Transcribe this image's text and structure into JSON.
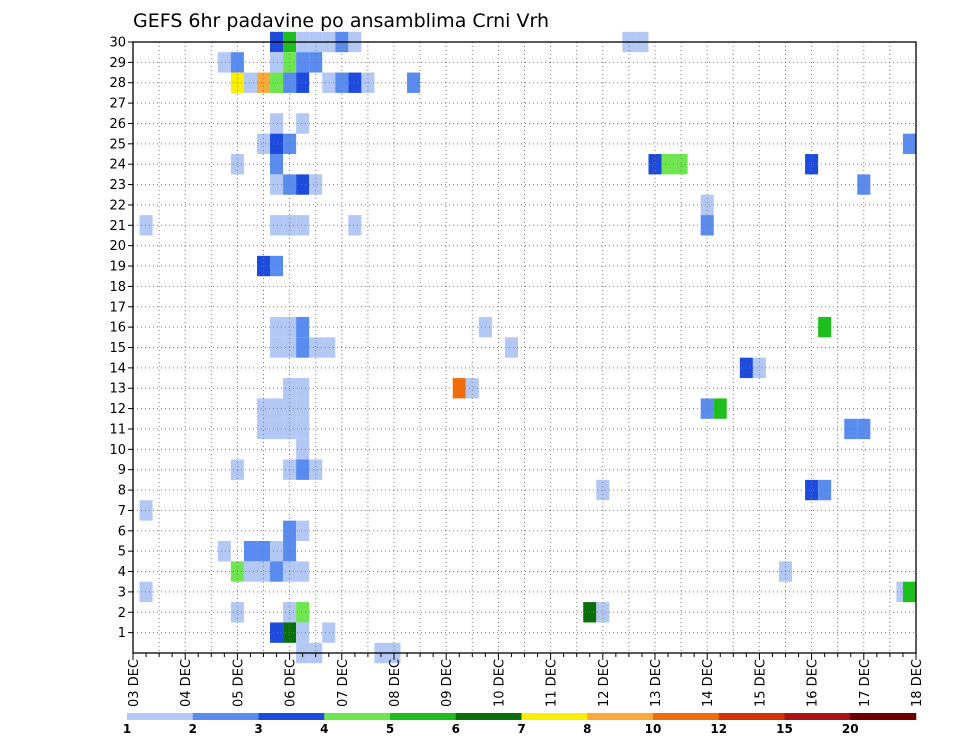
{
  "chart_data": {
    "type": "heatmap",
    "title": "GEFS 6hr padavine po ansamblima Crni Vrh",
    "xlabel": "",
    "ylabel": "",
    "x_ticks": [
      "03 DEC",
      "04 DEC",
      "05 DEC",
      "06 DEC",
      "07 DEC",
      "08 DEC",
      "09 DEC",
      "10 DEC",
      "11 DEC",
      "12 DEC",
      "13 DEC",
      "14 DEC",
      "15 DEC",
      "16 DEC",
      "17 DEC",
      "18 DEC"
    ],
    "y_ticks": [
      1,
      2,
      3,
      4,
      5,
      6,
      7,
      8,
      9,
      10,
      11,
      12,
      13,
      14,
      15,
      16,
      17,
      18,
      19,
      20,
      21,
      22,
      23,
      24,
      25,
      26,
      27,
      28,
      29,
      30
    ],
    "xlim_days": [
      0,
      15
    ],
    "ylim_members": [
      0,
      30
    ],
    "grid": true,
    "colorbar": {
      "labels": [
        "1",
        "2",
        "3",
        "4",
        "5",
        "6",
        "7",
        "8",
        "10",
        "12",
        "15",
        "20"
      ],
      "colors": [
        "#b4c8f5",
        "#5a8cf0",
        "#1e4bdc",
        "#6ee650",
        "#1ebe1e",
        "#0a6e0a",
        "#faf000",
        "#faaa3c",
        "#f06e0a",
        "#d2320a",
        "#aa1414",
        "#6e0000"
      ]
    },
    "cells": [
      {
        "d": 0.25,
        "m": 21,
        "l": 1
      },
      {
        "d": 0.25,
        "m": 7,
        "l": 1
      },
      {
        "d": 0.25,
        "m": 3,
        "l": 1
      },
      {
        "d": 1.75,
        "m": 29,
        "l": 1
      },
      {
        "d": 1.75,
        "m": 5,
        "l": 1
      },
      {
        "d": 2.0,
        "m": 29,
        "l": 2
      },
      {
        "d": 2.0,
        "m": 28,
        "l": 7
      },
      {
        "d": 2.0,
        "m": 24,
        "l": 1
      },
      {
        "d": 2.0,
        "m": 9,
        "l": 1
      },
      {
        "d": 2.0,
        "m": 4,
        "l": 4
      },
      {
        "d": 2.0,
        "m": 2,
        "l": 1
      },
      {
        "d": 2.25,
        "m": 28,
        "l": 1
      },
      {
        "d": 2.25,
        "m": 5,
        "l": 2
      },
      {
        "d": 2.25,
        "m": 4,
        "l": 1
      },
      {
        "d": 2.5,
        "m": 28,
        "l": 8
      },
      {
        "d": 2.5,
        "m": 25,
        "l": 1
      },
      {
        "d": 2.5,
        "m": 19,
        "l": 3
      },
      {
        "d": 2.5,
        "m": 12,
        "l": 1
      },
      {
        "d": 2.5,
        "m": 11,
        "l": 1
      },
      {
        "d": 2.5,
        "m": 5,
        "l": 2
      },
      {
        "d": 2.5,
        "m": 4,
        "l": 1
      },
      {
        "d": 2.75,
        "m": 30,
        "l": 3
      },
      {
        "d": 2.75,
        "m": 29,
        "l": 1
      },
      {
        "d": 2.75,
        "m": 28,
        "l": 4
      },
      {
        "d": 2.75,
        "m": 26,
        "l": 1
      },
      {
        "d": 2.75,
        "m": 25,
        "l": 3
      },
      {
        "d": 2.75,
        "m": 24,
        "l": 2
      },
      {
        "d": 2.75,
        "m": 23,
        "l": 1
      },
      {
        "d": 2.75,
        "m": 21,
        "l": 1
      },
      {
        "d": 2.75,
        "m": 19,
        "l": 2
      },
      {
        "d": 2.75,
        "m": 16,
        "l": 1
      },
      {
        "d": 2.75,
        "m": 15,
        "l": 1
      },
      {
        "d": 2.75,
        "m": 12,
        "l": 1
      },
      {
        "d": 2.75,
        "m": 11,
        "l": 1
      },
      {
        "d": 2.75,
        "m": 5,
        "l": 1
      },
      {
        "d": 2.75,
        "m": 4,
        "l": 2
      },
      {
        "d": 2.75,
        "m": 1,
        "l": 3
      },
      {
        "d": 3.0,
        "m": 30,
        "l": 5
      },
      {
        "d": 3.0,
        "m": 29,
        "l": 4
      },
      {
        "d": 3.0,
        "m": 28,
        "l": 2
      },
      {
        "d": 3.0,
        "m": 25,
        "l": 2
      },
      {
        "d": 3.0,
        "m": 23,
        "l": 2
      },
      {
        "d": 3.0,
        "m": 21,
        "l": 1
      },
      {
        "d": 3.0,
        "m": 16,
        "l": 1
      },
      {
        "d": 3.0,
        "m": 15,
        "l": 1
      },
      {
        "d": 3.0,
        "m": 13,
        "l": 1
      },
      {
        "d": 3.0,
        "m": 12,
        "l": 1
      },
      {
        "d": 3.0,
        "m": 11,
        "l": 1
      },
      {
        "d": 3.0,
        "m": 9,
        "l": 1
      },
      {
        "d": 3.0,
        "m": 6,
        "l": 2
      },
      {
        "d": 3.0,
        "m": 5,
        "l": 2
      },
      {
        "d": 3.0,
        "m": 4,
        "l": 1
      },
      {
        "d": 3.0,
        "m": 2,
        "l": 1
      },
      {
        "d": 3.0,
        "m": 1,
        "l": 6
      },
      {
        "d": 3.25,
        "m": 30,
        "l": 1
      },
      {
        "d": 3.25,
        "m": 29,
        "l": 2
      },
      {
        "d": 3.25,
        "m": 28,
        "l": 3
      },
      {
        "d": 3.25,
        "m": 26,
        "l": 1
      },
      {
        "d": 3.25,
        "m": 23,
        "l": 3
      },
      {
        "d": 3.25,
        "m": 21,
        "l": 1
      },
      {
        "d": 3.25,
        "m": 16,
        "l": 2
      },
      {
        "d": 3.25,
        "m": 15,
        "l": 2
      },
      {
        "d": 3.25,
        "m": 13,
        "l": 1
      },
      {
        "d": 3.25,
        "m": 12,
        "l": 1
      },
      {
        "d": 3.25,
        "m": 11,
        "l": 1
      },
      {
        "d": 3.25,
        "m": 10,
        "l": 1
      },
      {
        "d": 3.25,
        "m": 9,
        "l": 2
      },
      {
        "d": 3.25,
        "m": 6,
        "l": 1
      },
      {
        "d": 3.25,
        "m": 4,
        "l": 1
      },
      {
        "d": 3.25,
        "m": 2,
        "l": 4
      },
      {
        "d": 3.25,
        "m": 1,
        "l": 1
      },
      {
        "d": 3.25,
        "m": 0,
        "l": 1
      },
      {
        "d": 3.5,
        "m": 30,
        "l": 1
      },
      {
        "d": 3.5,
        "m": 29,
        "l": 2
      },
      {
        "d": 3.5,
        "m": 23,
        "l": 1
      },
      {
        "d": 3.5,
        "m": 15,
        "l": 1
      },
      {
        "d": 3.5,
        "m": 9,
        "l": 1
      },
      {
        "d": 3.5,
        "m": 0,
        "l": 1
      },
      {
        "d": 3.75,
        "m": 30,
        "l": 1
      },
      {
        "d": 3.75,
        "m": 28,
        "l": 1
      },
      {
        "d": 3.75,
        "m": 15,
        "l": 1
      },
      {
        "d": 3.75,
        "m": 1,
        "l": 1
      },
      {
        "d": 4.0,
        "m": 30,
        "l": 2
      },
      {
        "d": 4.0,
        "m": 28,
        "l": 2
      },
      {
        "d": 4.25,
        "m": 30,
        "l": 1
      },
      {
        "d": 4.25,
        "m": 28,
        "l": 3
      },
      {
        "d": 4.25,
        "m": 21,
        "l": 1
      },
      {
        "d": 4.5,
        "m": 28,
        "l": 1
      },
      {
        "d": 4.75,
        "m": 0,
        "l": 1
      },
      {
        "d": 5.0,
        "m": 0,
        "l": 1
      },
      {
        "d": 5.375,
        "m": 28,
        "l": 2
      },
      {
        "d": 6.25,
        "m": 13,
        "l": 9
      },
      {
        "d": 6.5,
        "m": 13,
        "l": 1
      },
      {
        "d": 6.75,
        "m": 16,
        "l": 1
      },
      {
        "d": 7.25,
        "m": 15,
        "l": 1
      },
      {
        "d": 8.75,
        "m": 2,
        "l": 6
      },
      {
        "d": 9.0,
        "m": 8,
        "l": 1
      },
      {
        "d": 9.0,
        "m": 2,
        "l": 1
      },
      {
        "d": 9.5,
        "m": 30,
        "l": 1
      },
      {
        "d": 9.75,
        "m": 30,
        "l": 1
      },
      {
        "d": 10.0,
        "m": 24,
        "l": 3
      },
      {
        "d": 10.25,
        "m": 24,
        "l": 4
      },
      {
        "d": 10.5,
        "m": 24,
        "l": 4
      },
      {
        "d": 11.0,
        "m": 22,
        "l": 1
      },
      {
        "d": 11.0,
        "m": 21,
        "l": 2
      },
      {
        "d": 11.0,
        "m": 12,
        "l": 2
      },
      {
        "d": 11.25,
        "m": 12,
        "l": 5
      },
      {
        "d": 11.75,
        "m": 14,
        "l": 3
      },
      {
        "d": 12.0,
        "m": 14,
        "l": 1
      },
      {
        "d": 12.5,
        "m": 4,
        "l": 1
      },
      {
        "d": 13.0,
        "m": 24,
        "l": 3
      },
      {
        "d": 13.0,
        "m": 8,
        "l": 3
      },
      {
        "d": 13.25,
        "m": 8,
        "l": 2
      },
      {
        "d": 13.25,
        "m": 16,
        "l": 5
      },
      {
        "d": 13.75,
        "m": 11,
        "l": 2
      },
      {
        "d": 14.0,
        "m": 23,
        "l": 2
      },
      {
        "d": 14.0,
        "m": 11,
        "l": 2
      },
      {
        "d": 14.75,
        "m": 3,
        "l": 1
      },
      {
        "d": 14.875,
        "m": 25,
        "l": 2
      },
      {
        "d": 14.875,
        "m": 3,
        "l": 5
      }
    ]
  }
}
